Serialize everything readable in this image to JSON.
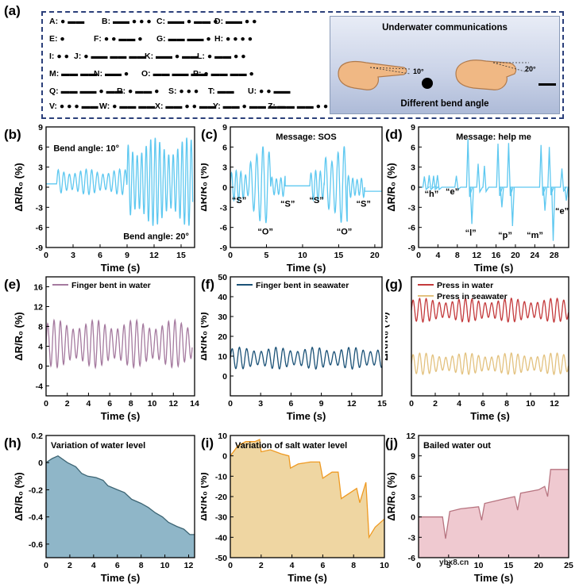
{
  "panel_a": {
    "label": "(a)",
    "morse_rows": [
      [
        "A: ● ▬▬",
        "B: ▬▬ ● ● ●",
        "C: ▬▬ ● ▬▬ ●",
        "D: ▬▬ ● ●"
      ],
      [
        "E: ●",
        "F: ● ● ▬▬ ●",
        "G: ▬▬ ▬▬ ●",
        "H: ● ● ● ●"
      ],
      [
        "I: ● ●",
        "J: ● ▬▬ ▬▬ ▬▬",
        "K: ▬▬ ● ▬▬",
        "L: ● ▬▬ ● ●"
      ],
      [
        "M: ▬▬ ▬▬",
        "N: ▬▬ ●",
        "O: ▬▬ ▬▬ ▬▬",
        "P: ● ▬▬ ▬▬ ●"
      ],
      [
        "Q: ▬▬ ▬▬ ● ▬▬",
        "R: ● ▬▬ ●",
        "S: ● ● ●",
        "T: ▬▬",
        "U: ● ● ▬▬"
      ],
      [
        "V: ● ● ● ▬▬",
        "W: ● ▬▬ ▬▬",
        "X: ▬▬ ● ● ▬▬",
        "Y: ▬▬ ● ▬▬ ▬▬",
        "Z: ▬▬ ▬▬ ● ●"
      ]
    ],
    "illustration_title": "Underwater communications",
    "illustration_caption": "Different bend angle",
    "angle_left": "10°",
    "angle_right": "20°"
  },
  "axis_y_label": "ΔR/R₀ (%)",
  "axis_x_label": "Time (s)",
  "colors": {
    "light_blue": "#5ec8f0",
    "purple": "#a57a9f",
    "navy": "#1b5277",
    "red": "#c43a3c",
    "tan": "#e3c27f",
    "teal_fill": "#8fb6c8",
    "teal_line": "#3d6574",
    "orange_fill": "#efd6a2",
    "orange_line": "#ef9a22",
    "pink_fill": "#efc9d0",
    "pink_line": "#b77480"
  },
  "chart_data": [
    {
      "id": "b",
      "label": "(b)",
      "type": "line",
      "title": "",
      "xlim": [
        0,
        16.5
      ],
      "ylim": [
        -9,
        9
      ],
      "xticks": [
        0,
        3,
        6,
        9,
        12,
        15
      ],
      "yticks": [
        -9,
        -6,
        -3,
        0,
        3,
        6,
        9
      ],
      "annotations": [
        "Bend angle: 10°",
        "Bend angle: 20°"
      ],
      "series": [
        {
          "name": "signal",
          "color": "light_blue",
          "segments": [
            {
              "t0": 0,
              "t1": 1.2,
              "base": 0.5,
              "amp": 0,
              "period": 1
            },
            {
              "t0": 1.2,
              "t1": 9,
              "base": 0.8,
              "amp": 1.9,
              "period": 0.62
            },
            {
              "t0": 9,
              "t1": 16.3,
              "base": 0.8,
              "amp": 6.6,
              "period": 0.5
            }
          ]
        }
      ]
    },
    {
      "id": "c",
      "label": "(c)",
      "type": "line",
      "title": "Message: SOS",
      "xlim": [
        0,
        21
      ],
      "ylim": [
        -9,
        9
      ],
      "xticks": [
        0,
        5,
        10,
        15,
        20
      ],
      "yticks": [
        -9,
        -6,
        -3,
        0,
        3,
        6,
        9
      ],
      "annotations": [
        "“S”",
        "“O”",
        "“S”",
        "“S”",
        "“O”",
        "“S”"
      ],
      "series": [
        {
          "name": "signal",
          "color": "light_blue",
          "segments": [
            {
              "t0": 0,
              "t1": 2.6,
              "base": 0.2,
              "amp": 2.3,
              "period": 0.65
            },
            {
              "t0": 2.6,
              "t1": 5.6,
              "base": 0.3,
              "amp": 5.8,
              "period": 0.85
            },
            {
              "t0": 5.6,
              "t1": 7.6,
              "base": 0.1,
              "amp": 1.9,
              "period": 0.62
            },
            {
              "t0": 7.6,
              "t1": 11,
              "base": 0.2,
              "amp": 0,
              "period": 1
            },
            {
              "t0": 11,
              "t1": 13,
              "base": 0.2,
              "amp": 2.3,
              "period": 0.65
            },
            {
              "t0": 13,
              "t1": 16.2,
              "base": 0.3,
              "amp": 5.8,
              "period": 0.85
            },
            {
              "t0": 16.2,
              "t1": 18.6,
              "base": 0,
              "amp": 1.9,
              "period": 0.6
            },
            {
              "t0": 18.6,
              "t1": 21,
              "base": -0.6,
              "amp": 0,
              "period": 1
            }
          ]
        }
      ]
    },
    {
      "id": "d",
      "label": "(d)",
      "type": "line",
      "title": "Message: help me",
      "xlim": [
        0,
        31
      ],
      "ylim": [
        -9,
        9
      ],
      "xticks": [
        0,
        4,
        8,
        12,
        16,
        20,
        24,
        28
      ],
      "yticks": [
        -9,
        -6,
        -3,
        0,
        3,
        6,
        9
      ],
      "annotations": [
        "“h”",
        "“e”",
        "“l”",
        "“p”",
        "“m”",
        "“e”"
      ],
      "series": [
        {
          "name": "signal",
          "color": "light_blue",
          "spikes": [
            [
              1.2,
              1.6
            ],
            [
              2.2,
              1.8
            ],
            [
              3.1,
              1.7
            ],
            [
              3.9,
              1.8
            ],
            [
              7.8,
              1.7
            ],
            [
              10.2,
              7.2
            ],
            [
              11.0,
              -5.5
            ],
            [
              12.3,
              3.5
            ],
            [
              13.6,
              3.2
            ],
            [
              16.4,
              6.5
            ],
            [
              17.2,
              -3.0
            ],
            [
              18.6,
              6.6
            ],
            [
              19.4,
              -5.8
            ],
            [
              25.3,
              6.3
            ],
            [
              26.1,
              -3.5
            ],
            [
              27.0,
              6.0
            ],
            [
              27.8,
              -8.0
            ],
            [
              29.6,
              2.8
            ],
            [
              30.5,
              -2.0
            ]
          ]
        }
      ]
    },
    {
      "id": "e",
      "label": "(e)",
      "type": "line",
      "title": "",
      "xlim": [
        0,
        14
      ],
      "ylim": [
        -6,
        18
      ],
      "xticks": [
        0,
        2,
        4,
        6,
        8,
        10,
        12,
        14
      ],
      "yticks": [
        -4,
        0,
        4,
        8,
        12,
        16
      ],
      "legend": [
        "Finger bent in water"
      ],
      "series": [
        {
          "name": "Finger bent in water",
          "color": "purple",
          "segments": [
            {
              "t0": 0,
              "t1": 13.8,
              "base": 4.5,
              "amp": 4.8,
              "period": 0.6
            }
          ]
        }
      ]
    },
    {
      "id": "f",
      "label": "(f)",
      "type": "line",
      "title": "",
      "xlim": [
        0,
        15
      ],
      "ylim": [
        -10,
        50
      ],
      "xticks": [
        0,
        3,
        6,
        9,
        12,
        15
      ],
      "yticks": [
        0,
        10,
        20,
        30,
        40,
        50
      ],
      "legend": [
        "Finger bent in seawater"
      ],
      "series": [
        {
          "name": "Finger bent in seawater",
          "color": "navy",
          "segments": [
            {
              "t0": 0,
              "t1": 15,
              "base": 9,
              "amp": 5.5,
              "period": 0.72
            }
          ]
        }
      ]
    },
    {
      "id": "g",
      "label": "(g)",
      "type": "line",
      "title": "",
      "xlim": [
        0,
        13.2
      ],
      "ylim": [
        0,
        10
      ],
      "xticks": [
        0,
        2,
        4,
        6,
        8,
        10,
        12
      ],
      "yticks": [],
      "legend": [
        "Press in water",
        "Press in seawater"
      ],
      "series": [
        {
          "name": "Press in water",
          "color": "red",
          "segments": [
            {
              "t0": 0,
              "t1": 13.2,
              "base": 7.2,
              "amp": 1.0,
              "period": 0.55
            }
          ]
        },
        {
          "name": "Press in seawater",
          "color": "tan",
          "segments": [
            {
              "t0": 0,
              "t1": 13.2,
              "base": 2.7,
              "amp": 0.9,
              "period": 0.55
            }
          ]
        }
      ]
    },
    {
      "id": "h",
      "label": "(h)",
      "type": "area",
      "title": "Variation of water level",
      "xlim": [
        0,
        12.5
      ],
      "ylim": [
        -0.7,
        0.2
      ],
      "xticks": [
        0,
        2,
        4,
        6,
        8,
        10,
        12
      ],
      "yticks": [
        -0.6,
        -0.4,
        -0.2,
        0.0,
        0.2
      ],
      "series": [
        {
          "name": "water level",
          "color": "teal_line",
          "fill": "teal_fill",
          "points": [
            [
              0,
              0
            ],
            [
              0.5,
              0.03
            ],
            [
              1,
              0.05
            ],
            [
              1.8,
              0.0
            ],
            [
              2.5,
              -0.03
            ],
            [
              3,
              -0.08
            ],
            [
              3.5,
              -0.1
            ],
            [
              4.2,
              -0.11
            ],
            [
              4.8,
              -0.13
            ],
            [
              5.2,
              -0.17
            ],
            [
              6,
              -0.2
            ],
            [
              6.6,
              -0.22
            ],
            [
              7.2,
              -0.27
            ],
            [
              8,
              -0.3
            ],
            [
              8.6,
              -0.33
            ],
            [
              9.2,
              -0.37
            ],
            [
              9.8,
              -0.4
            ],
            [
              10.3,
              -0.44
            ],
            [
              11,
              -0.47
            ],
            [
              11.6,
              -0.49
            ],
            [
              12.1,
              -0.53
            ],
            [
              12.5,
              -0.53
            ]
          ]
        }
      ]
    },
    {
      "id": "i",
      "label": "(i)",
      "type": "area",
      "title": "Variation of salt water level",
      "xlim": [
        0,
        10
      ],
      "ylim": [
        -50,
        10
      ],
      "xticks": [
        0,
        2,
        4,
        6,
        8,
        10
      ],
      "yticks": [
        -50,
        -40,
        -30,
        -20,
        -10,
        0,
        10
      ],
      "series": [
        {
          "name": "salt water level",
          "color": "orange_line",
          "fill": "orange_fill",
          "points": [
            [
              0,
              0
            ],
            [
              0.5,
              5
            ],
            [
              1,
              7
            ],
            [
              1.6,
              7
            ],
            [
              1.9,
              8
            ],
            [
              2,
              2
            ],
            [
              2.6,
              3
            ],
            [
              3.3,
              1
            ],
            [
              3.8,
              0
            ],
            [
              3.9,
              -6
            ],
            [
              4.4,
              -4
            ],
            [
              5.2,
              -3
            ],
            [
              5.8,
              -3
            ],
            [
              6,
              -11
            ],
            [
              6.6,
              -8
            ],
            [
              7,
              -8
            ],
            [
              7.2,
              -21
            ],
            [
              7.6,
              -19
            ],
            [
              8.2,
              -16
            ],
            [
              8.4,
              -23
            ],
            [
              8.8,
              -13
            ],
            [
              9.0,
              -40
            ],
            [
              9.4,
              -35
            ],
            [
              10,
              -31
            ]
          ]
        }
      ]
    },
    {
      "id": "j",
      "label": "(j)",
      "type": "area",
      "title": "Bailed water out",
      "xlim": [
        0,
        25
      ],
      "ylim": [
        -6,
        12
      ],
      "xticks": [
        0,
        5,
        10,
        15,
        20,
        25
      ],
      "yticks": [
        -6,
        -3,
        0,
        3,
        6,
        9,
        12
      ],
      "series": [
        {
          "name": "bailed water",
          "color": "pink_line",
          "fill": "pink_fill",
          "points": [
            [
              0,
              0
            ],
            [
              4,
              0
            ],
            [
              4.5,
              -3.2
            ],
            [
              5.2,
              0.8
            ],
            [
              7,
              1.2
            ],
            [
              10,
              1.5
            ],
            [
              10.5,
              -0.5
            ],
            [
              11,
              2
            ],
            [
              14,
              2.6
            ],
            [
              16,
              3
            ],
            [
              16.5,
              1
            ],
            [
              17,
              3.5
            ],
            [
              20,
              4
            ],
            [
              21,
              4.5
            ],
            [
              21.5,
              3
            ],
            [
              22,
              7
            ],
            [
              25,
              7
            ]
          ]
        }
      ]
    }
  ],
  "watermark": "ybx8.cn"
}
